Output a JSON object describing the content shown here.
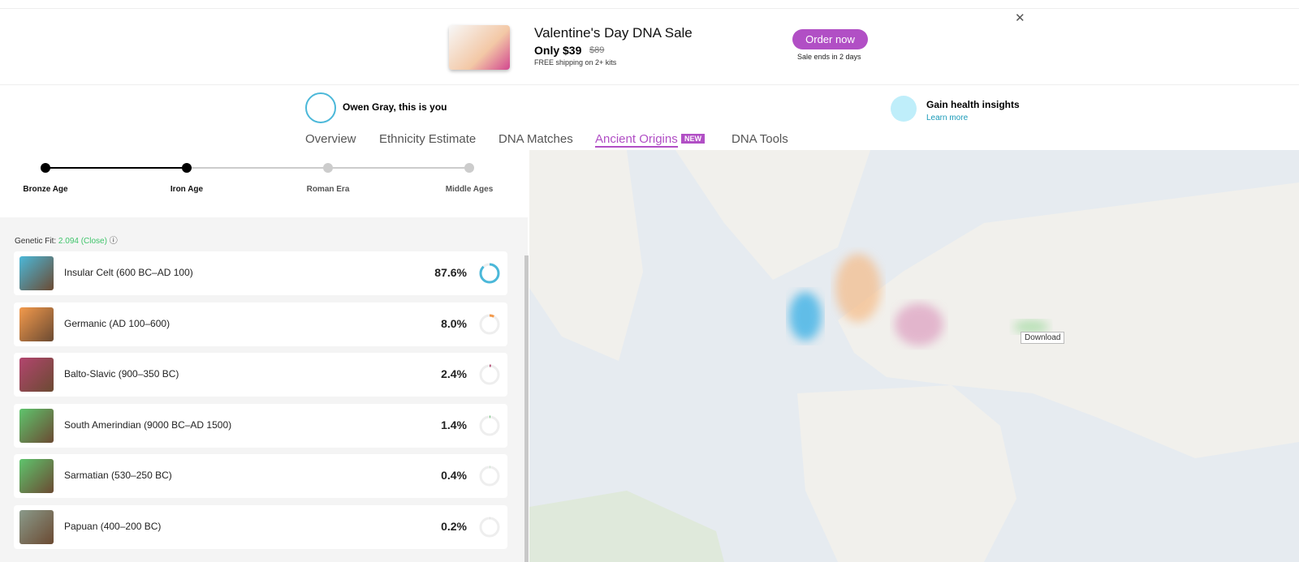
{
  "banner": {
    "title": "Valentine's Day DNA Sale",
    "price": "Only $39",
    "old_price": "$89",
    "shipping": "FREE shipping on 2+ kits",
    "button": "Order now",
    "sale_ends": "Sale ends in 2 days"
  },
  "profile": {
    "name": "Owen Gray, this is you"
  },
  "tabs": {
    "items": [
      "Overview",
      "Ethnicity Estimate",
      "DNA Matches",
      "Ancient Origins",
      "DNA Tools"
    ],
    "active": 3,
    "badge": "NEW"
  },
  "health": {
    "title": "Gain health insights",
    "link": "Learn more"
  },
  "timeline": {
    "stages": [
      "Bronze Age",
      "Iron Age",
      "Roman Era",
      "Middle Ages"
    ],
    "active": 1
  },
  "genetic_fit": {
    "label": "Genetic Fit:",
    "value": "2.094 (Close)"
  },
  "results": [
    {
      "name": "Insular Celt (600 BC–AD 100)",
      "value": 87.6,
      "value_label": "87.6%",
      "color": "#4bb8d9"
    },
    {
      "name": "Germanic (AD 100–600)",
      "value": 8.0,
      "value_label": "8.0%",
      "color": "#f39a4c"
    },
    {
      "name": "Balto-Slavic (900–350 BC)",
      "value": 2.4,
      "value_label": "2.4%",
      "color": "#b2456e"
    },
    {
      "name": "South Amerindian (9000 BC–AD 1500)",
      "value": 1.4,
      "value_label": "1.4%",
      "color": "#5fc46d"
    },
    {
      "name": "Sarmatian (530–250 BC)",
      "value": 0.4,
      "value_label": "0.4%",
      "color": "#5fc46d"
    },
    {
      "name": "Papuan (400–200 BC)",
      "value": 0.2,
      "value_label": "0.2%",
      "color": "#8a9a8a"
    }
  ],
  "map": {
    "download": "Download"
  }
}
